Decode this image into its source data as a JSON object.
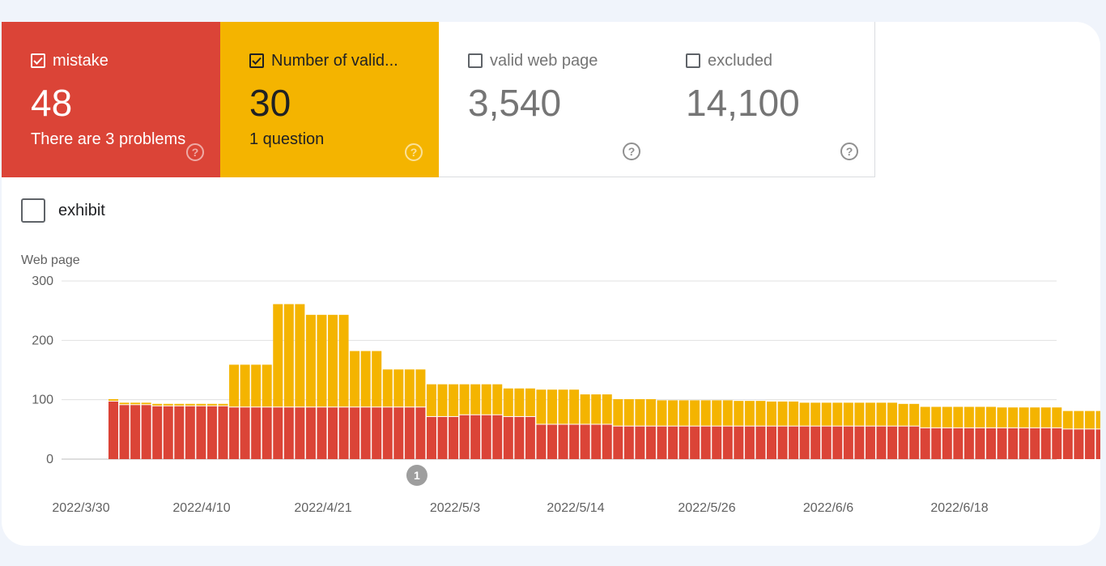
{
  "tiles": [
    {
      "label": "mistake",
      "value": "48",
      "sub": "There are 3 problems",
      "checked": true
    },
    {
      "label": "Number of valid...",
      "value": "30",
      "sub": "1 question",
      "checked": true
    },
    {
      "label": "valid web page",
      "value": "3,540",
      "sub": "",
      "checked": false
    },
    {
      "label": "excluded",
      "value": "14,100",
      "sub": "",
      "checked": false
    }
  ],
  "help_glyph": "?",
  "exhibit": {
    "label": "exhibit"
  },
  "colors": {
    "error": "#db4437",
    "warning": "#f4b400",
    "grid": "#e0e0e0",
    "axis_text": "#616161"
  },
  "chart_data": {
    "type": "bar",
    "stacked": true,
    "ylabel": "Web page",
    "ylim": [
      0,
      300
    ],
    "yticks": [
      0,
      100,
      200,
      300
    ],
    "xtick_labels": [
      "2022/3/30",
      "2022/4/10",
      "2022/4/21",
      "2022/5/3",
      "2022/5/14",
      "2022/5/26",
      "2022/6/6",
      "2022/6/18"
    ],
    "annotation": {
      "label": "1",
      "bar_index": 29
    },
    "series": [
      {
        "values": [
          97,
          91,
          91,
          91,
          89,
          89,
          89,
          89,
          89,
          89,
          89,
          87,
          87,
          87,
          87,
          87,
          87,
          87,
          87,
          87,
          87,
          87,
          87,
          87,
          87,
          87,
          87,
          87,
          87,
          71,
          71,
          71,
          74,
          74,
          74,
          74,
          71,
          71,
          71,
          58,
          58,
          58,
          58,
          58,
          58,
          58,
          55,
          55,
          55,
          55,
          55,
          55,
          55,
          55,
          55,
          55,
          55,
          55,
          55,
          55,
          55,
          55,
          55,
          55,
          55,
          55,
          55,
          55,
          55,
          55,
          55,
          55,
          55,
          55,
          52,
          52,
          52,
          52,
          52,
          52,
          52,
          52,
          52,
          52,
          52,
          52,
          52,
          50,
          50,
          50,
          50
        ]
      },
      {
        "values": [
          4,
          4,
          4,
          4,
          4,
          4,
          4,
          4,
          4,
          4,
          4,
          72,
          72,
          72,
          72,
          174,
          174,
          174,
          156,
          156,
          156,
          156,
          95,
          95,
          95,
          64,
          64,
          64,
          64,
          55,
          55,
          55,
          52,
          52,
          52,
          52,
          48,
          48,
          48,
          59,
          59,
          59,
          59,
          51,
          51,
          51,
          46,
          46,
          46,
          46,
          44,
          44,
          44,
          44,
          44,
          44,
          44,
          43,
          43,
          43,
          42,
          42,
          42,
          40,
          40,
          40,
          40,
          40,
          40,
          40,
          40,
          40,
          38,
          38,
          36,
          36,
          36,
          36,
          36,
          36,
          36,
          35,
          35,
          35,
          35,
          35,
          35,
          31,
          31,
          31,
          31
        ]
      }
    ]
  }
}
